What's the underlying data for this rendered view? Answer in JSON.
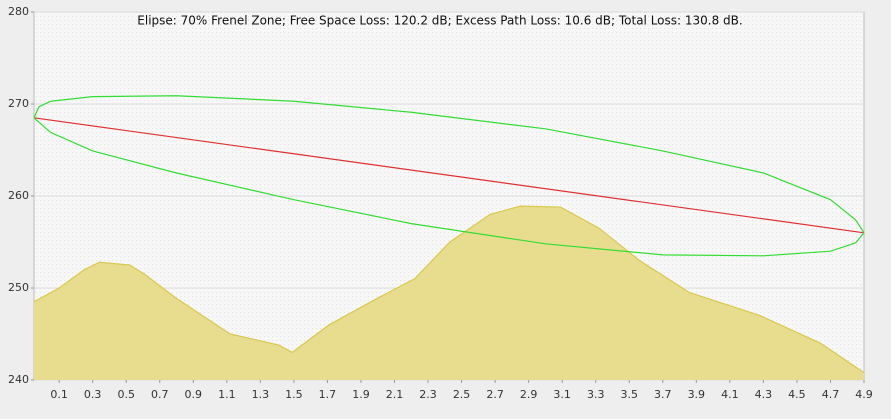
{
  "chart_data": {
    "type": "line",
    "title": "Elipse: 70% Frenel Zone;  Free Space Loss: 120.2 dB;  Excess Path Loss: 10.6 dB;   Total Loss: 130.8 dB.",
    "xlim": [
      -0.05,
      4.9
    ],
    "ylim": [
      240,
      280
    ],
    "xticks": [
      0.1,
      0.3,
      0.5,
      0.7,
      0.9,
      1.1,
      1.3,
      1.5,
      1.7,
      1.9,
      2.1,
      2.3,
      2.5,
      2.7,
      2.9,
      3.1,
      3.3,
      3.5,
      3.7,
      3.9,
      4.1,
      4.3,
      4.5,
      4.7,
      4.9
    ],
    "yticks": [
      240,
      250,
      260,
      270,
      280
    ],
    "grid": true,
    "series": [
      {
        "kind": "area",
        "color": "#d9c84e",
        "fill": "#e8dd8e",
        "x": [
          -0.05,
          0.1,
          0.25,
          0.34,
          0.52,
          0.61,
          0.79,
          1.12,
          1.41,
          1.49,
          1.71,
          2.01,
          2.22,
          2.43,
          2.67,
          2.85,
          3.09,
          3.32,
          3.56,
          3.86,
          4.28,
          4.64,
          4.9
        ],
        "values": [
          248.5,
          250,
          252,
          252.8,
          252.5,
          251.5,
          249,
          245,
          243.8,
          243,
          246,
          249,
          251,
          255,
          258,
          258.9,
          258.8,
          256.5,
          253,
          249.5,
          247,
          244,
          240.8
        ]
      },
      {
        "kind": "line",
        "color": "#e03030",
        "x": [
          -0.05,
          4.9
        ],
        "values": [
          268.5,
          256
        ]
      },
      {
        "kind": "line",
        "color": "#33dd33",
        "x": [
          -0.05,
          -0.02,
          0.05,
          0.3,
          0.8,
          1.5,
          2.2,
          3.0,
          3.7,
          4.3,
          4.7,
          4.85,
          4.9
        ],
        "values": [
          268.5,
          269.7,
          270.3,
          270.8,
          270.9,
          270.3,
          269.1,
          267.3,
          264.9,
          262.5,
          259.6,
          257.4,
          256
        ]
      },
      {
        "kind": "line",
        "color": "#33dd33",
        "x": [
          -0.05,
          0.05,
          0.3,
          0.8,
          1.5,
          2.2,
          3.0,
          3.7,
          4.3,
          4.7,
          4.85,
          4.9
        ],
        "values": [
          268.5,
          266.9,
          264.9,
          262.5,
          259.6,
          257,
          254.8,
          253.6,
          253.5,
          254,
          254.9,
          256
        ]
      }
    ]
  }
}
